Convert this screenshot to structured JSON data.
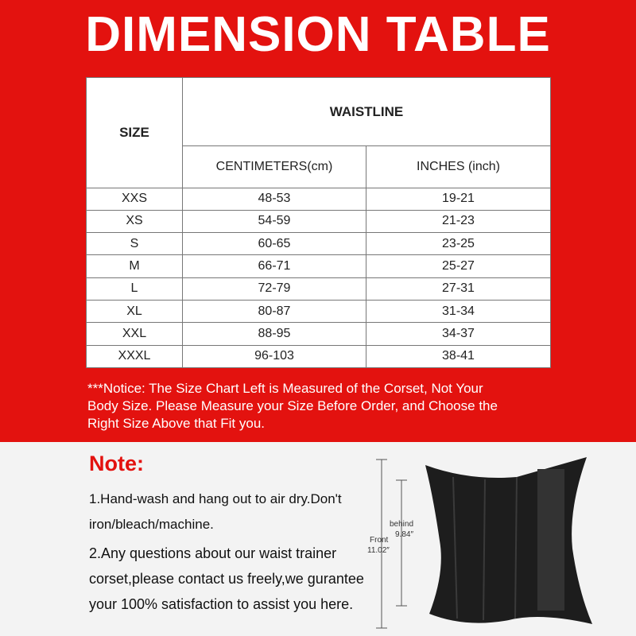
{
  "header": {
    "title": "DIMENSION TABLE"
  },
  "table": {
    "size_header": "SIZE",
    "group_header": "WAISTLINE",
    "columns": [
      "CENTIMETERS(cm)",
      "INCHES (inch)"
    ],
    "rows": [
      [
        "XXS",
        "48-53",
        "19-21"
      ],
      [
        "XS",
        "54-59",
        "21-23"
      ],
      [
        "S",
        "60-65",
        "23-25"
      ],
      [
        "M",
        "66-71",
        "25-27"
      ],
      [
        "L",
        "72-79",
        "27-31"
      ],
      [
        "XL",
        "80-87",
        "31-34"
      ],
      [
        "XXL",
        "88-95",
        "34-37"
      ],
      [
        "XXXL",
        "96-103",
        "38-41"
      ]
    ]
  },
  "notice": {
    "lines": [
      "***Notice: The Size Chart Left is Measured of the Corset, Not Your",
      "Body Size. Please Measure your Size Before Order, and Choose the",
      "Right Size Above that Fit you."
    ]
  },
  "note": {
    "title": "Note:",
    "items": [
      {
        "lines": [
          "1.Hand-wash and hang out to air dry.Don't",
          "iron/bleach/machine."
        ]
      },
      {
        "lines": [
          "2.Any questions about our waist trainer",
          "corset,please contact us freely,we gurantee",
          "your 100% satisfaction to assist you here."
        ]
      }
    ]
  },
  "figure": {
    "behind": [
      "behind",
      "9.84″"
    ],
    "front": [
      "Front",
      "11.02″"
    ]
  }
}
